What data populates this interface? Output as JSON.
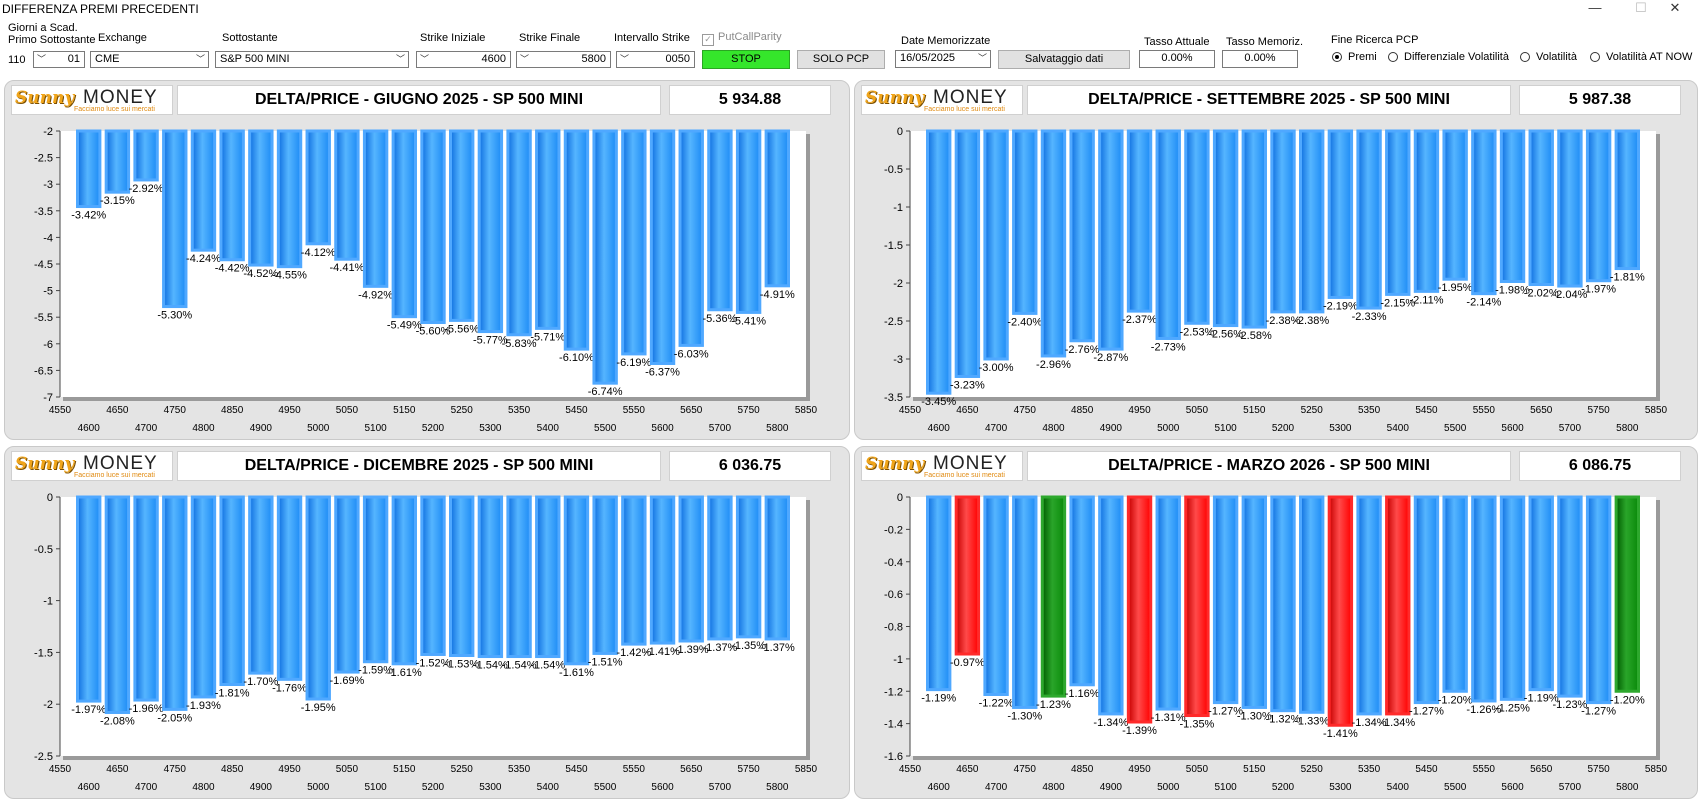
{
  "window": {
    "title": "DIFFERENZA PREMI PRECEDENTI",
    "minimize_glyph": "—",
    "maximize_glyph": "☐",
    "close_glyph": "✕"
  },
  "toolbar": {
    "giorni_label_line1": "Giorni a Scad.",
    "giorni_label_line2": "Primo Sottostante",
    "giorni_value": "110",
    "giorni_spin_value": "01",
    "exchange_label": "Exchange",
    "exchange_value": "CME",
    "sottostante_label": "Sottostante",
    "sottostante_value": "S&P 500 MINI",
    "strike_iniziale_label": "Strike Iniziale",
    "strike_iniziale_value": "4600",
    "strike_finale_label": "Strike Finale",
    "strike_finale_value": "5800",
    "intervallo_label": "Intervallo Strike",
    "intervallo_value": "0050",
    "putcall_label": "PutCallParity",
    "stop_label": "STOP",
    "solo_pcp_label": "SOLO PCP",
    "date_label": "Date Memorizzate",
    "date_value": "16/05/2025",
    "salvataggio_label": "Salvataggio dati",
    "tasso_attuale_label": "Tasso Attuale",
    "tasso_attuale_value": "0.00%",
    "tasso_memoriz_label": "Tasso Memoriz.",
    "tasso_memoriz_value": "0.00%",
    "fine_ricerca_label": "Fine Ricerca PCP",
    "radio_options": [
      "Premi",
      "Differenziale Volatilità",
      "Volatilità",
      "Volatilità AT NOW"
    ],
    "radio_selected": 0
  },
  "logo": {
    "brand_left": "Sunny",
    "brand_right": "MONEY",
    "tagline": "Facciamo luce sui mercati"
  },
  "colors": {
    "blue": "#1e90ff",
    "blue_dark": "#1a6fd6",
    "red": "#ff0000",
    "green": "#0a8a0a"
  },
  "panels": [
    {
      "title": "DELTA/PRICE - GIUGNO 2025 - SP 500 MINI",
      "price": "5 934.88"
    },
    {
      "title": "DELTA/PRICE - SETTEMBRE 2025 - SP 500 MINI",
      "price": "5 987.38"
    },
    {
      "title": "DELTA/PRICE - DICEMBRE 2025 - SP 500 MINI",
      "price": "6 036.75"
    },
    {
      "title": "DELTA/PRICE - MARZO 2026 - SP 500 MINI",
      "price": "6 086.75"
    }
  ],
  "chart_data": [
    {
      "type": "bar",
      "title": "DELTA/PRICE - GIUGNO 2025 - SP 500 MINI",
      "ylim": [
        -7,
        -2
      ],
      "yticks": [
        -2,
        -2.5,
        -3,
        -3.5,
        -4,
        -4.5,
        -5,
        -5.5,
        -6,
        -6.5,
        -7
      ],
      "xlim": [
        4550,
        5850
      ],
      "xticks_top": [
        4550,
        4650,
        4750,
        4850,
        4950,
        5050,
        5150,
        5250,
        5350,
        5450,
        5550,
        5650,
        5750,
        5850
      ],
      "xticks_bottom": [
        4600,
        4650,
        4700,
        4750,
        4800,
        4850,
        4900,
        4950,
        5000,
        5050,
        5100,
        5150,
        5200,
        5250,
        5300,
        5350,
        5400,
        5450,
        5500,
        5550,
        5600,
        5650,
        5700,
        5750,
        5800
      ],
      "x": [
        4600,
        4650,
        4700,
        4750,
        4800,
        4850,
        4900,
        4950,
        5000,
        5050,
        5100,
        5150,
        5200,
        5250,
        5300,
        5350,
        5400,
        5450,
        5500,
        5550,
        5600,
        5650,
        5700,
        5750,
        5800
      ],
      "values": [
        -3.42,
        -3.15,
        -2.92,
        -5.3,
        -4.24,
        -4.42,
        -4.52,
        -4.55,
        -4.12,
        -4.41,
        -4.92,
        -5.49,
        -5.6,
        -5.56,
        -5.77,
        -5.83,
        -5.71,
        -6.1,
        -6.74,
        -6.19,
        -6.37,
        -6.03,
        -5.36,
        -5.41,
        -4.91
      ],
      "labels": [
        "-3.42%",
        "-3.15%",
        "-2.92%",
        "-5.30%",
        "-4.24%",
        "-4.42%",
        "-4.52%",
        "-4.55%",
        "-4.12%",
        "-4.41%",
        "-4.92%",
        "-5.49%",
        "-5.60%",
        "-5.56%",
        "-5.77%",
        "-5.83%",
        "-5.71%",
        "-6.10%",
        "-6.74%",
        "-6.19%",
        "-6.37%",
        "-6.03%",
        "-5.36%",
        "-5.41%",
        "-4.91%"
      ],
      "colors": [
        "blue",
        "blue",
        "blue",
        "blue",
        "blue",
        "blue",
        "blue",
        "blue",
        "blue",
        "blue",
        "blue",
        "blue",
        "blue",
        "blue",
        "blue",
        "blue",
        "blue",
        "blue",
        "blue",
        "blue",
        "blue",
        "blue",
        "blue",
        "blue",
        "blue"
      ]
    },
    {
      "type": "bar",
      "title": "DELTA/PRICE - SETTEMBRE 2025 - SP 500 MINI",
      "ylim": [
        -3.5,
        0
      ],
      "yticks": [
        0,
        -0.5,
        -1,
        -1.5,
        -2,
        -2.5,
        -3,
        -3.5
      ],
      "xlim": [
        4550,
        5850
      ],
      "xticks_top": [
        4550,
        4650,
        4750,
        4850,
        4950,
        5050,
        5150,
        5250,
        5350,
        5450,
        5550,
        5650,
        5750,
        5850
      ],
      "xticks_bottom": [
        4600,
        4650,
        4700,
        4750,
        4800,
        4850,
        4900,
        4950,
        5000,
        5050,
        5100,
        5150,
        5200,
        5250,
        5300,
        5350,
        5400,
        5450,
        5500,
        5550,
        5600,
        5650,
        5700,
        5750,
        5800
      ],
      "x": [
        4600,
        4650,
        4700,
        4750,
        4800,
        4850,
        4900,
        4950,
        5000,
        5050,
        5100,
        5150,
        5200,
        5250,
        5300,
        5350,
        5400,
        5450,
        5500,
        5550,
        5600,
        5650,
        5700,
        5750,
        5800
      ],
      "values": [
        -3.45,
        -3.23,
        -3.0,
        -2.4,
        -2.96,
        -2.76,
        -2.87,
        -2.37,
        -2.73,
        -2.53,
        -2.56,
        -2.58,
        -2.38,
        -2.38,
        -2.19,
        -2.33,
        -2.15,
        -2.11,
        -1.95,
        -2.14,
        -1.98,
        -2.02,
        -2.04,
        -1.97,
        -1.81
      ],
      "labels": [
        "-3.45%",
        "-3.23%",
        "-3.00%",
        "-2.40%",
        "-2.96%",
        "-2.76%",
        "-2.87%",
        "-2.37%",
        "-2.73%",
        "-2.53%",
        "-2.56%",
        "-2.58%",
        "-2.38%",
        "-2.38%",
        "-2.19%",
        "-2.33%",
        "-2.15%",
        "-2.11%",
        "-1.95%",
        "-2.14%",
        "-1.98%",
        "-2.02%",
        "-2.04%",
        "-1.97%",
        "-1.81%"
      ],
      "colors": [
        "blue",
        "blue",
        "blue",
        "blue",
        "blue",
        "blue",
        "blue",
        "blue",
        "blue",
        "blue",
        "blue",
        "blue",
        "blue",
        "blue",
        "blue",
        "blue",
        "blue",
        "blue",
        "blue",
        "blue",
        "blue",
        "blue",
        "blue",
        "blue",
        "blue"
      ]
    },
    {
      "type": "bar",
      "title": "DELTA/PRICE - DICEMBRE 2025 - SP 500 MINI",
      "ylim": [
        -2.5,
        0
      ],
      "yticks": [
        0,
        -0.5,
        -1,
        -1.5,
        -2,
        -2.5
      ],
      "xlim": [
        4550,
        5850
      ],
      "xticks_top": [
        4550,
        4650,
        4750,
        4850,
        4950,
        5050,
        5150,
        5250,
        5350,
        5450,
        5550,
        5650,
        5750,
        5850
      ],
      "xticks_bottom": [
        4600,
        4650,
        4700,
        4750,
        4800,
        4850,
        4900,
        4950,
        5000,
        5050,
        5100,
        5150,
        5200,
        5250,
        5300,
        5350,
        5400,
        5450,
        5500,
        5550,
        5600,
        5650,
        5700,
        5750,
        5800
      ],
      "x": [
        4600,
        4650,
        4700,
        4750,
        4800,
        4850,
        4900,
        4950,
        5000,
        5050,
        5100,
        5150,
        5200,
        5250,
        5300,
        5350,
        5400,
        5450,
        5500,
        5550,
        5600,
        5650,
        5700,
        5750,
        5800
      ],
      "values": [
        -1.97,
        -2.08,
        -1.96,
        -2.05,
        -1.93,
        -1.81,
        -1.7,
        -1.76,
        -1.95,
        -1.69,
        -1.59,
        -1.61,
        -1.52,
        -1.53,
        -1.54,
        -1.54,
        -1.54,
        -1.61,
        -1.51,
        -1.42,
        -1.41,
        -1.39,
        -1.37,
        -1.35,
        -1.37
      ],
      "labels": [
        "-1.97%",
        "-2.08%",
        "-1.96%",
        "-2.05%",
        "-1.93%",
        "-1.81%",
        "-1.70%",
        "-1.76%",
        "-1.95%",
        "-1.69%",
        "-1.59%",
        "-1.61%",
        "-1.52%",
        "-1.53%",
        "-1.54%",
        "-1.54%",
        "-1.54%",
        "-1.61%",
        "-1.51%",
        "-1.42%",
        "-1.41%",
        "-1.39%",
        "-1.37%",
        "-1.35%",
        "-1.37%"
      ],
      "colors": [
        "blue",
        "blue",
        "blue",
        "blue",
        "blue",
        "blue",
        "blue",
        "blue",
        "blue",
        "blue",
        "blue",
        "blue",
        "blue",
        "blue",
        "blue",
        "blue",
        "blue",
        "blue",
        "blue",
        "blue",
        "blue",
        "blue",
        "blue",
        "blue",
        "blue"
      ]
    },
    {
      "type": "bar",
      "title": "DELTA/PRICE - MARZO 2026 - SP 500 MINI",
      "ylim": [
        -1.6,
        0
      ],
      "yticks": [
        0,
        -0.2,
        -0.4,
        -0.6,
        -0.8,
        -1,
        -1.2,
        -1.4,
        -1.6
      ],
      "xlim": [
        4550,
        5850
      ],
      "xticks_top": [
        4550,
        4650,
        4750,
        4850,
        4950,
        5050,
        5150,
        5250,
        5350,
        5450,
        5550,
        5650,
        5750,
        5850
      ],
      "xticks_bottom": [
        4600,
        4650,
        4700,
        4750,
        4800,
        4850,
        4900,
        4950,
        5000,
        5050,
        5100,
        5150,
        5200,
        5250,
        5300,
        5350,
        5400,
        5450,
        5500,
        5550,
        5600,
        5650,
        5700,
        5750,
        5800
      ],
      "x": [
        4600,
        4650,
        4700,
        4750,
        4800,
        4850,
        4900,
        4950,
        5000,
        5050,
        5100,
        5150,
        5200,
        5250,
        5300,
        5350,
        5400,
        5450,
        5500,
        5550,
        5600,
        5650,
        5700,
        5750,
        5800
      ],
      "values": [
        -1.19,
        -0.97,
        -1.22,
        -1.3,
        -1.23,
        -1.16,
        -1.34,
        -1.39,
        -1.31,
        -1.35,
        -1.27,
        -1.3,
        -1.32,
        -1.33,
        -1.41,
        -1.34,
        -1.34,
        -1.27,
        -1.2,
        -1.26,
        -1.25,
        -1.19,
        -1.23,
        -1.27,
        -1.2
      ],
      "labels": [
        "-1.19%",
        "-0.97%",
        "-1.22%",
        "-1.30%",
        "-1.23%",
        "-1.16%",
        "-1.34%",
        "-1.39%",
        "-1.31%",
        "-1.35%",
        "-1.27%",
        "-1.30%",
        "-1.32%",
        "-1.33%",
        "-1.41%",
        "-1.34%",
        "-1.34%",
        "-1.27%",
        "-1.20%",
        "-1.26%",
        "-1.25%",
        "-1.19%",
        "-1.23%",
        "-1.27%",
        "-1.20%"
      ],
      "colors": [
        "blue",
        "red",
        "blue",
        "blue",
        "green",
        "blue",
        "blue",
        "red",
        "blue",
        "red",
        "blue",
        "blue",
        "blue",
        "blue",
        "red",
        "blue",
        "red",
        "blue",
        "blue",
        "blue",
        "blue",
        "blue",
        "blue",
        "blue",
        "green"
      ]
    }
  ]
}
